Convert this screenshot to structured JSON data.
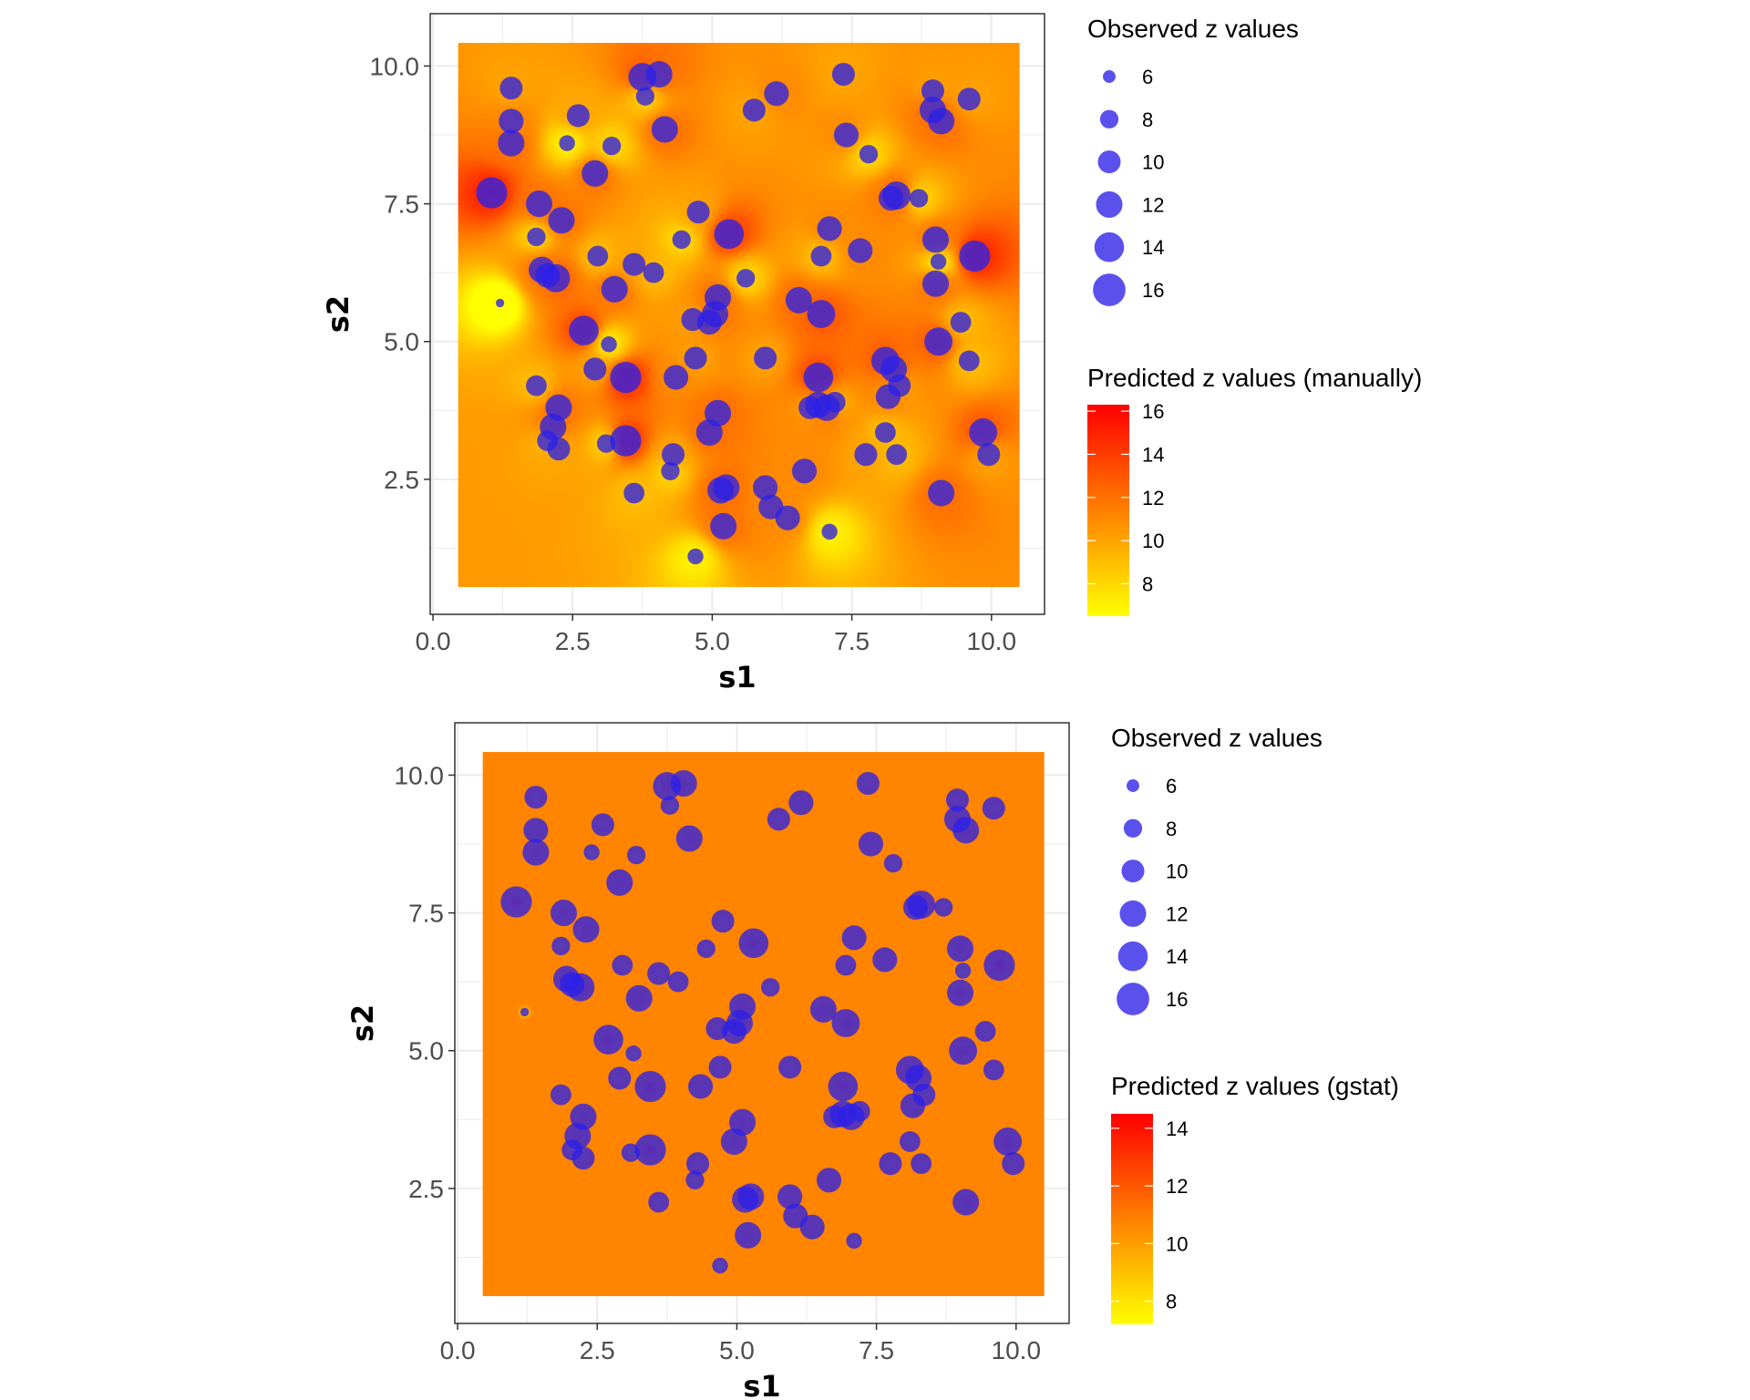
{
  "colors": {
    "point": "#2b20e8",
    "low": "#ffff00",
    "high": "#ff0000",
    "panel_border": "#333333",
    "grid": "#ebebeb",
    "gstat_fill": "#ffb600"
  },
  "chart_data": [
    {
      "type": "scatter",
      "background": "kriging-heatmap",
      "xlabel": "s1",
      "ylabel": "s2",
      "xlim": [
        -0.05,
        10.95
      ],
      "ylim": [
        0.05,
        10.95
      ],
      "x_ticks": [
        "0.0",
        "2.5",
        "5.0",
        "7.5",
        "10.0"
      ],
      "y_ticks": [
        "2.5",
        "5.0",
        "7.5",
        "10.0"
      ],
      "raster_extent": {
        "x": [
          0.45,
          10.5
        ],
        "y": [
          0.55,
          10.42
        ]
      },
      "grid": true,
      "size_legend": {
        "title": "Observed z values",
        "breaks": [
          "6",
          "8",
          "10",
          "12",
          "14",
          "16"
        ]
      },
      "fill_legend": {
        "title": "Predicted z values (manually)",
        "breaks": [
          "8",
          "10",
          "12",
          "14",
          "16"
        ],
        "range": [
          6.5,
          16.3
        ]
      }
    },
    {
      "type": "scatter",
      "background": "kriging-heatmap",
      "xlabel": "s1",
      "ylabel": "s2",
      "xlim": [
        -0.05,
        10.95
      ],
      "ylim": [
        0.05,
        10.95
      ],
      "x_ticks": [
        "0.0",
        "2.5",
        "5.0",
        "7.5",
        "10.0"
      ],
      "y_ticks": [
        "2.5",
        "5.0",
        "7.5",
        "10.0"
      ],
      "raster_extent": {
        "x": [
          0.45,
          10.5
        ],
        "y": [
          0.55,
          10.42
        ]
      },
      "grid": true,
      "size_legend": {
        "title": "Observed z values",
        "breaks": [
          "6",
          "8",
          "10",
          "12",
          "14",
          "16"
        ]
      },
      "fill_legend": {
        "title": "Predicted z values (gstat)",
        "breaks": [
          "8",
          "10",
          "12",
          "14"
        ],
        "range": [
          7.2,
          14.5
        ]
      }
    }
  ],
  "observations": [
    {
      "x": 1.4,
      "y": 9.6,
      "z": 10
    },
    {
      "x": 1.4,
      "y": 9.0,
      "z": 11
    },
    {
      "x": 1.4,
      "y": 8.6,
      "z": 12
    },
    {
      "x": 2.6,
      "y": 9.1,
      "z": 10
    },
    {
      "x": 2.4,
      "y": 8.6,
      "z": 7
    },
    {
      "x": 3.2,
      "y": 8.55,
      "z": 8
    },
    {
      "x": 2.9,
      "y": 8.05,
      "z": 12
    },
    {
      "x": 3.75,
      "y": 9.8,
      "z": 13
    },
    {
      "x": 4.05,
      "y": 9.85,
      "z": 12
    },
    {
      "x": 3.8,
      "y": 9.45,
      "z": 8
    },
    {
      "x": 4.15,
      "y": 8.85,
      "z": 12
    },
    {
      "x": 5.75,
      "y": 9.2,
      "z": 10
    },
    {
      "x": 6.15,
      "y": 9.5,
      "z": 11
    },
    {
      "x": 7.35,
      "y": 9.85,
      "z": 10
    },
    {
      "x": 8.95,
      "y": 9.55,
      "z": 10
    },
    {
      "x": 9.6,
      "y": 9.4,
      "z": 10
    },
    {
      "x": 8.95,
      "y": 9.2,
      "z": 12
    },
    {
      "x": 9.1,
      "y": 9.0,
      "z": 12
    },
    {
      "x": 7.4,
      "y": 8.75,
      "z": 11
    },
    {
      "x": 7.8,
      "y": 8.4,
      "z": 8
    },
    {
      "x": 1.05,
      "y": 7.7,
      "z": 15
    },
    {
      "x": 1.9,
      "y": 7.5,
      "z": 12
    },
    {
      "x": 2.3,
      "y": 7.2,
      "z": 12
    },
    {
      "x": 1.85,
      "y": 6.9,
      "z": 8
    },
    {
      "x": 4.75,
      "y": 7.35,
      "z": 10
    },
    {
      "x": 5.3,
      "y": 6.95,
      "z": 14
    },
    {
      "x": 4.45,
      "y": 6.85,
      "z": 8
    },
    {
      "x": 7.1,
      "y": 7.05,
      "z": 11
    },
    {
      "x": 6.95,
      "y": 6.55,
      "z": 9
    },
    {
      "x": 7.65,
      "y": 6.65,
      "z": 11
    },
    {
      "x": 8.2,
      "y": 7.6,
      "z": 11
    },
    {
      "x": 8.3,
      "y": 7.65,
      "z": 13
    },
    {
      "x": 8.7,
      "y": 7.6,
      "z": 8
    },
    {
      "x": 9.0,
      "y": 6.85,
      "z": 12
    },
    {
      "x": 9.05,
      "y": 6.45,
      "z": 7
    },
    {
      "x": 9.7,
      "y": 6.55,
      "z": 15
    },
    {
      "x": 1.95,
      "y": 6.3,
      "z": 12
    },
    {
      "x": 2.05,
      "y": 6.2,
      "z": 11
    },
    {
      "x": 2.2,
      "y": 6.15,
      "z": 13
    },
    {
      "x": 2.95,
      "y": 6.55,
      "z": 9
    },
    {
      "x": 3.6,
      "y": 6.4,
      "z": 10
    },
    {
      "x": 3.95,
      "y": 6.25,
      "z": 9
    },
    {
      "x": 3.25,
      "y": 5.95,
      "z": 12
    },
    {
      "x": 5.6,
      "y": 6.15,
      "z": 8
    },
    {
      "x": 6.55,
      "y": 5.75,
      "z": 12
    },
    {
      "x": 6.95,
      "y": 5.5,
      "z": 13
    },
    {
      "x": 9.0,
      "y": 6.05,
      "z": 12
    },
    {
      "x": 1.2,
      "y": 5.7,
      "z": 5
    },
    {
      "x": 2.7,
      "y": 5.2,
      "z": 14
    },
    {
      "x": 3.15,
      "y": 4.95,
      "z": 7
    },
    {
      "x": 4.65,
      "y": 5.4,
      "z": 10
    },
    {
      "x": 4.95,
      "y": 5.35,
      "z": 11
    },
    {
      "x": 5.05,
      "y": 5.5,
      "z": 12
    },
    {
      "x": 5.1,
      "y": 5.8,
      "z": 12
    },
    {
      "x": 9.45,
      "y": 5.35,
      "z": 9
    },
    {
      "x": 9.05,
      "y": 5.0,
      "z": 13
    },
    {
      "x": 9.6,
      "y": 4.65,
      "z": 9
    },
    {
      "x": 1.85,
      "y": 4.2,
      "z": 9
    },
    {
      "x": 2.9,
      "y": 4.5,
      "z": 10
    },
    {
      "x": 3.45,
      "y": 4.35,
      "z": 15
    },
    {
      "x": 4.35,
      "y": 4.35,
      "z": 11
    },
    {
      "x": 4.7,
      "y": 4.7,
      "z": 10
    },
    {
      "x": 5.95,
      "y": 4.7,
      "z": 10
    },
    {
      "x": 6.9,
      "y": 4.35,
      "z": 14
    },
    {
      "x": 6.75,
      "y": 3.8,
      "z": 10
    },
    {
      "x": 6.9,
      "y": 3.85,
      "z": 12
    },
    {
      "x": 7.05,
      "y": 3.8,
      "z": 12
    },
    {
      "x": 7.2,
      "y": 3.9,
      "z": 9
    },
    {
      "x": 8.1,
      "y": 4.65,
      "z": 13
    },
    {
      "x": 8.25,
      "y": 4.5,
      "z": 12
    },
    {
      "x": 8.35,
      "y": 4.2,
      "z": 10
    },
    {
      "x": 8.15,
      "y": 4.0,
      "z": 11
    },
    {
      "x": 2.25,
      "y": 3.8,
      "z": 12
    },
    {
      "x": 2.15,
      "y": 3.45,
      "z": 12
    },
    {
      "x": 2.05,
      "y": 3.2,
      "z": 9
    },
    {
      "x": 2.25,
      "y": 3.05,
      "z": 10
    },
    {
      "x": 3.1,
      "y": 3.15,
      "z": 8
    },
    {
      "x": 3.45,
      "y": 3.2,
      "z": 15
    },
    {
      "x": 5.1,
      "y": 3.7,
      "z": 12
    },
    {
      "x": 4.95,
      "y": 3.35,
      "z": 12
    },
    {
      "x": 4.3,
      "y": 2.95,
      "z": 10
    },
    {
      "x": 4.25,
      "y": 2.65,
      "z": 8
    },
    {
      "x": 7.75,
      "y": 2.95,
      "z": 10
    },
    {
      "x": 8.3,
      "y": 2.95,
      "z": 9
    },
    {
      "x": 8.1,
      "y": 3.35,
      "z": 9
    },
    {
      "x": 9.85,
      "y": 3.35,
      "z": 13
    },
    {
      "x": 9.95,
      "y": 2.95,
      "z": 10
    },
    {
      "x": 3.6,
      "y": 2.25,
      "z": 9
    },
    {
      "x": 5.15,
      "y": 2.3,
      "z": 12
    },
    {
      "x": 5.25,
      "y": 2.35,
      "z": 12
    },
    {
      "x": 5.95,
      "y": 2.35,
      "z": 11
    },
    {
      "x": 6.65,
      "y": 2.65,
      "z": 11
    },
    {
      "x": 5.2,
      "y": 1.65,
      "z": 12
    },
    {
      "x": 6.05,
      "y": 2.0,
      "z": 11
    },
    {
      "x": 6.35,
      "y": 1.8,
      "z": 11
    },
    {
      "x": 9.1,
      "y": 2.25,
      "z": 12
    },
    {
      "x": 7.1,
      "y": 1.55,
      "z": 7
    },
    {
      "x": 4.7,
      "y": 1.1,
      "z": 7
    }
  ]
}
